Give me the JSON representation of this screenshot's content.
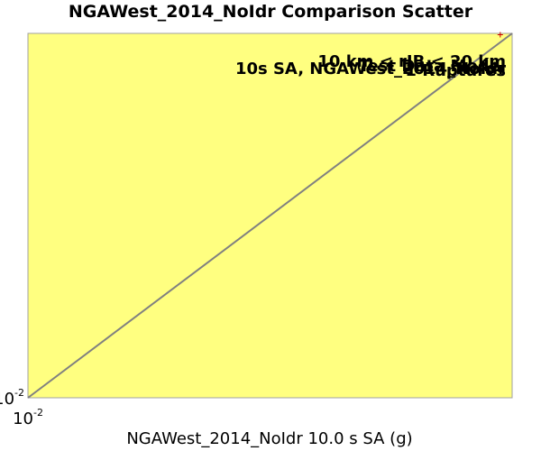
{
  "chart_data": {
    "type": "scatter",
    "title": "NGAWest_2014_NoIdr Comparison Scatter",
    "xlabel": "NGAWest_2014_NoIdr 10.0 s SA (g)",
    "ylabel": "",
    "x_scale": "log",
    "y_scale": "log",
    "xlim": [
      0.01,
      0.26
    ],
    "ylim": [
      0.01,
      0.26
    ],
    "grid": false,
    "x_ticks": [
      {
        "base": "10",
        "exp": "-2",
        "value": 0.01
      }
    ],
    "y_ticks": [
      {
        "base": "10",
        "exp": "-2",
        "value": 0.01
      }
    ],
    "reference_line": {
      "name": "1:1",
      "color": "#808080"
    },
    "series": [
      {
        "marker": "plus",
        "color": "#cc0000",
        "points": [
          {
            "x": 0.24,
            "y": 0.26
          }
        ]
      }
    ],
    "annotations": [
      "10 km < rJB < 20 km",
      "Test Data Model",
      "10s SA, NGAWest_2014_NoIdr",
      "1 Ruptures"
    ],
    "colors": {
      "plot_background": "#ffff80",
      "plot_border": "#a0a0a0",
      "reference_line": "#808080",
      "marker": "#cc0000"
    }
  }
}
